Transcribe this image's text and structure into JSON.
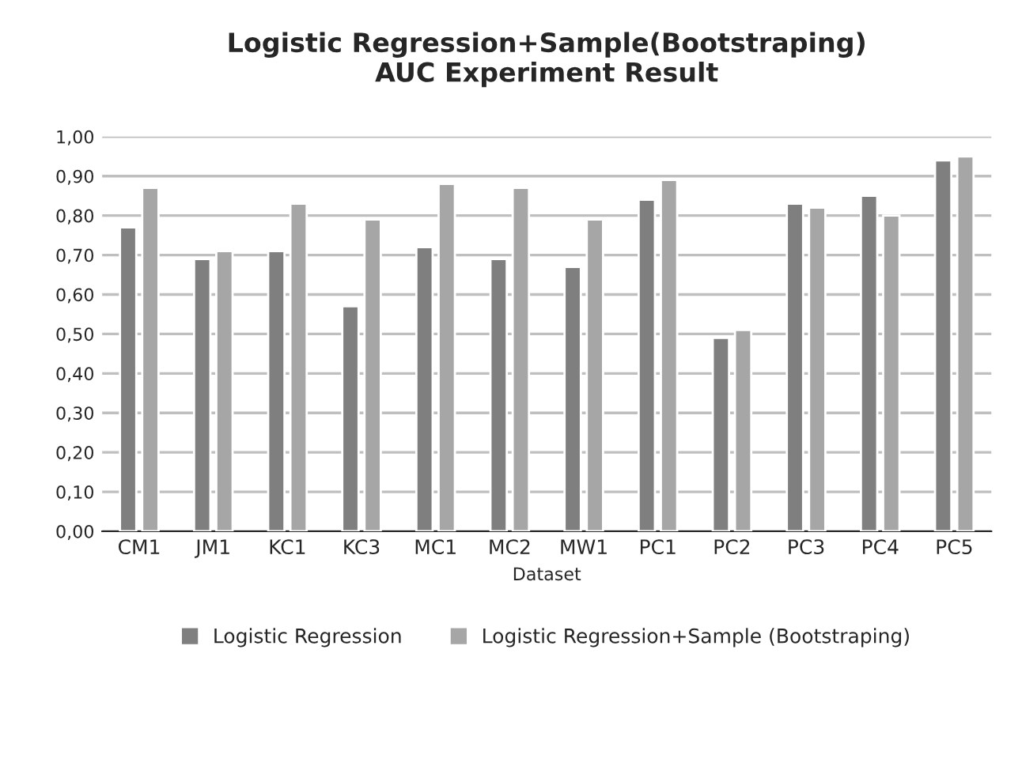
{
  "chart_data": {
    "type": "bar",
    "title": "Logistic Regression+Sample(Bootstraping)\nAUC Experiment Result",
    "xlabel": "Dataset",
    "categories": [
      "CM1",
      "JM1",
      "KC1",
      "KC3",
      "MC1",
      "MC2",
      "MW1",
      "PC1",
      "PC2",
      "PC3",
      "PC4",
      "PC5"
    ],
    "series": [
      {
        "name": "Logistic Regression",
        "color": "#7f7f7f",
        "values": [
          0.77,
          0.69,
          0.71,
          0.57,
          0.72,
          0.69,
          0.67,
          0.84,
          0.49,
          0.83,
          0.85,
          0.94
        ]
      },
      {
        "name": "Logistic Regression+Sample (Bootstraping)",
        "color": "#a6a6a6",
        "values": [
          0.87,
          0.71,
          0.83,
          0.79,
          0.88,
          0.87,
          0.79,
          0.89,
          0.51,
          0.82,
          0.8,
          0.95
        ]
      }
    ],
    "ylim": [
      0,
      1
    ],
    "yticks": [
      {
        "value": 0,
        "label": "0,00"
      },
      {
        "value": 0.1,
        "label": "0,10"
      },
      {
        "value": 0.2,
        "label": "0,20"
      },
      {
        "value": 0.3,
        "label": "0,30"
      },
      {
        "value": 0.4,
        "label": "0,40"
      },
      {
        "value": 0.5,
        "label": "0,50"
      },
      {
        "value": 0.6,
        "label": "0,60"
      },
      {
        "value": 0.7,
        "label": "0,70"
      },
      {
        "value": 0.8,
        "label": "0,80"
      },
      {
        "value": 0.9,
        "label": "0,90"
      },
      {
        "value": 1,
        "label": "1,00"
      }
    ],
    "grid": "y",
    "legend": "bottom"
  }
}
